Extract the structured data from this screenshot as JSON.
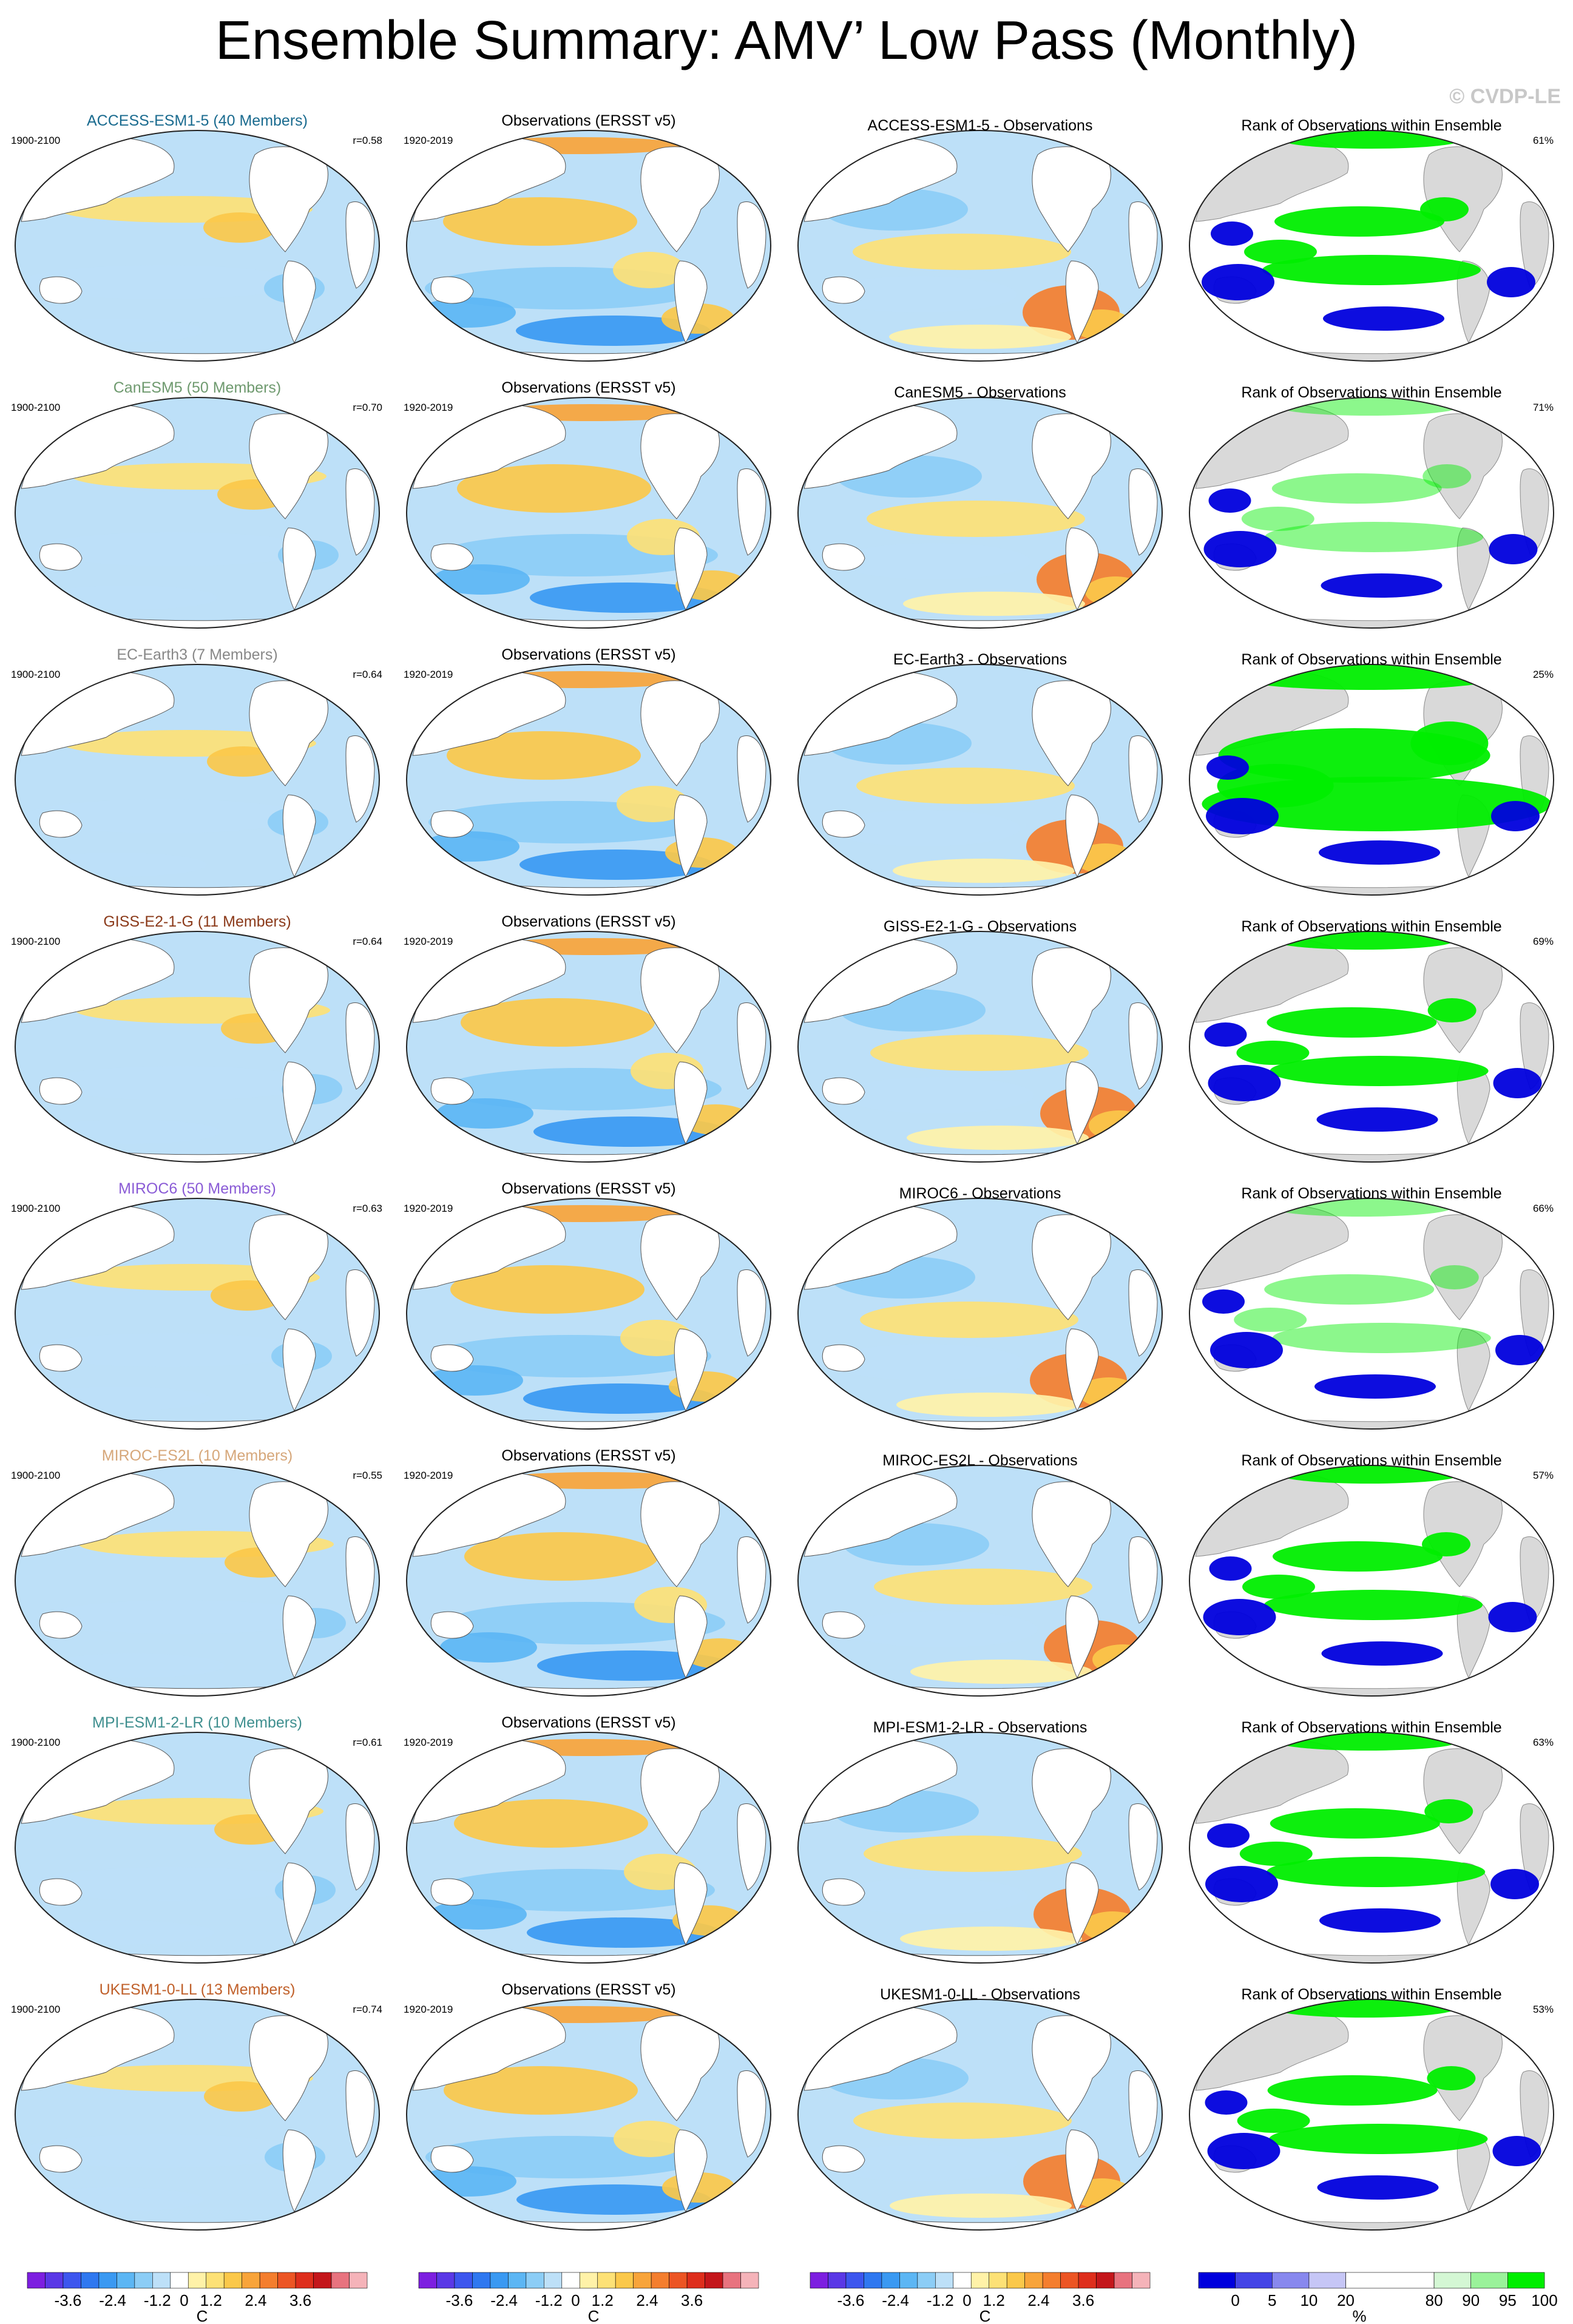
{
  "title": "Ensemble Summary: AMV’ Low Pass (Monthly)",
  "credit": "© CVDP-LE",
  "obs_title": "Observations (ERSST v5)",
  "obs_years": "1920-2019",
  "model_years": "1900-2100",
  "rank_title": "Rank of Observations within Ensemble",
  "rows": [
    {
      "model_title": "ACCESS-ESM1-5 (40 Members)",
      "model_color": "#1a6b8f",
      "r": "r=0.58",
      "diff_title": "ACCESS-ESM1-5 - Observations",
      "rank_pct": "61%"
    },
    {
      "model_title": "CanESM5 (50 Members)",
      "model_color": "#6f9a6f",
      "r": "r=0.70",
      "diff_title": "CanESM5 - Observations",
      "rank_pct": "71%"
    },
    {
      "model_title": "EC-Earth3 (7 Members)",
      "model_color": "#888888",
      "r": "r=0.64",
      "diff_title": "EC-Earth3 - Observations",
      "rank_pct": "25%"
    },
    {
      "model_title": "GISS-E2-1-G (11 Members)",
      "model_color": "#8b3a1a",
      "r": "r=0.64",
      "diff_title": "GISS-E2-1-G - Observations",
      "rank_pct": "69%"
    },
    {
      "model_title": "MIROC6 (50 Members)",
      "model_color": "#8a5bd6",
      "r": "r=0.63",
      "diff_title": "MIROC6 - Observations",
      "rank_pct": "66%"
    },
    {
      "model_title": "MIROC-ES2L (10 Members)",
      "model_color": "#d6a77a",
      "r": "r=0.55",
      "diff_title": "MIROC-ES2L - Observations",
      "rank_pct": "57%"
    },
    {
      "model_title": "MPI-ESM1-2-LR (10 Members)",
      "model_color": "#3f8f8f",
      "r": "r=0.61",
      "diff_title": "MPI-ESM1-2-LR - Observations",
      "rank_pct": "63%"
    },
    {
      "model_title": "UKESM1-0-LL (13 Members)",
      "model_color": "#c0602a",
      "r": "r=0.74",
      "diff_title": "UKESM1-0-LL - Observations",
      "rank_pct": "53%"
    }
  ],
  "colorbar_temp": {
    "ticks": [
      "-3.6",
      "-2.4",
      "-1.2",
      "0",
      "1.2",
      "2.4",
      "3.6"
    ],
    "unit": "C",
    "colors": [
      "#7d1fe0",
      "#5a38e6",
      "#3d56ee",
      "#2f78f0",
      "#3a99f2",
      "#5cb6f4",
      "#8ccdf6",
      "#bde0f8",
      "#ffffff",
      "#fff2a8",
      "#fde176",
      "#fbc84a",
      "#f8a43a",
      "#f47e2e",
      "#ec5524",
      "#de2e1c",
      "#c4161b",
      "#e8737f",
      "#f5b3b9"
    ]
  },
  "colorbar_rank": {
    "ticks": [
      "0",
      "5",
      "10",
      "20",
      "80",
      "90",
      "95",
      "100"
    ],
    "unit": "%",
    "colors": [
      "#0000dd",
      "#4444e6",
      "#8888ee",
      "#c6c6f6",
      "#ffffff",
      "#d4f7d4",
      "#9af29a",
      "#00ee00"
    ]
  }
}
